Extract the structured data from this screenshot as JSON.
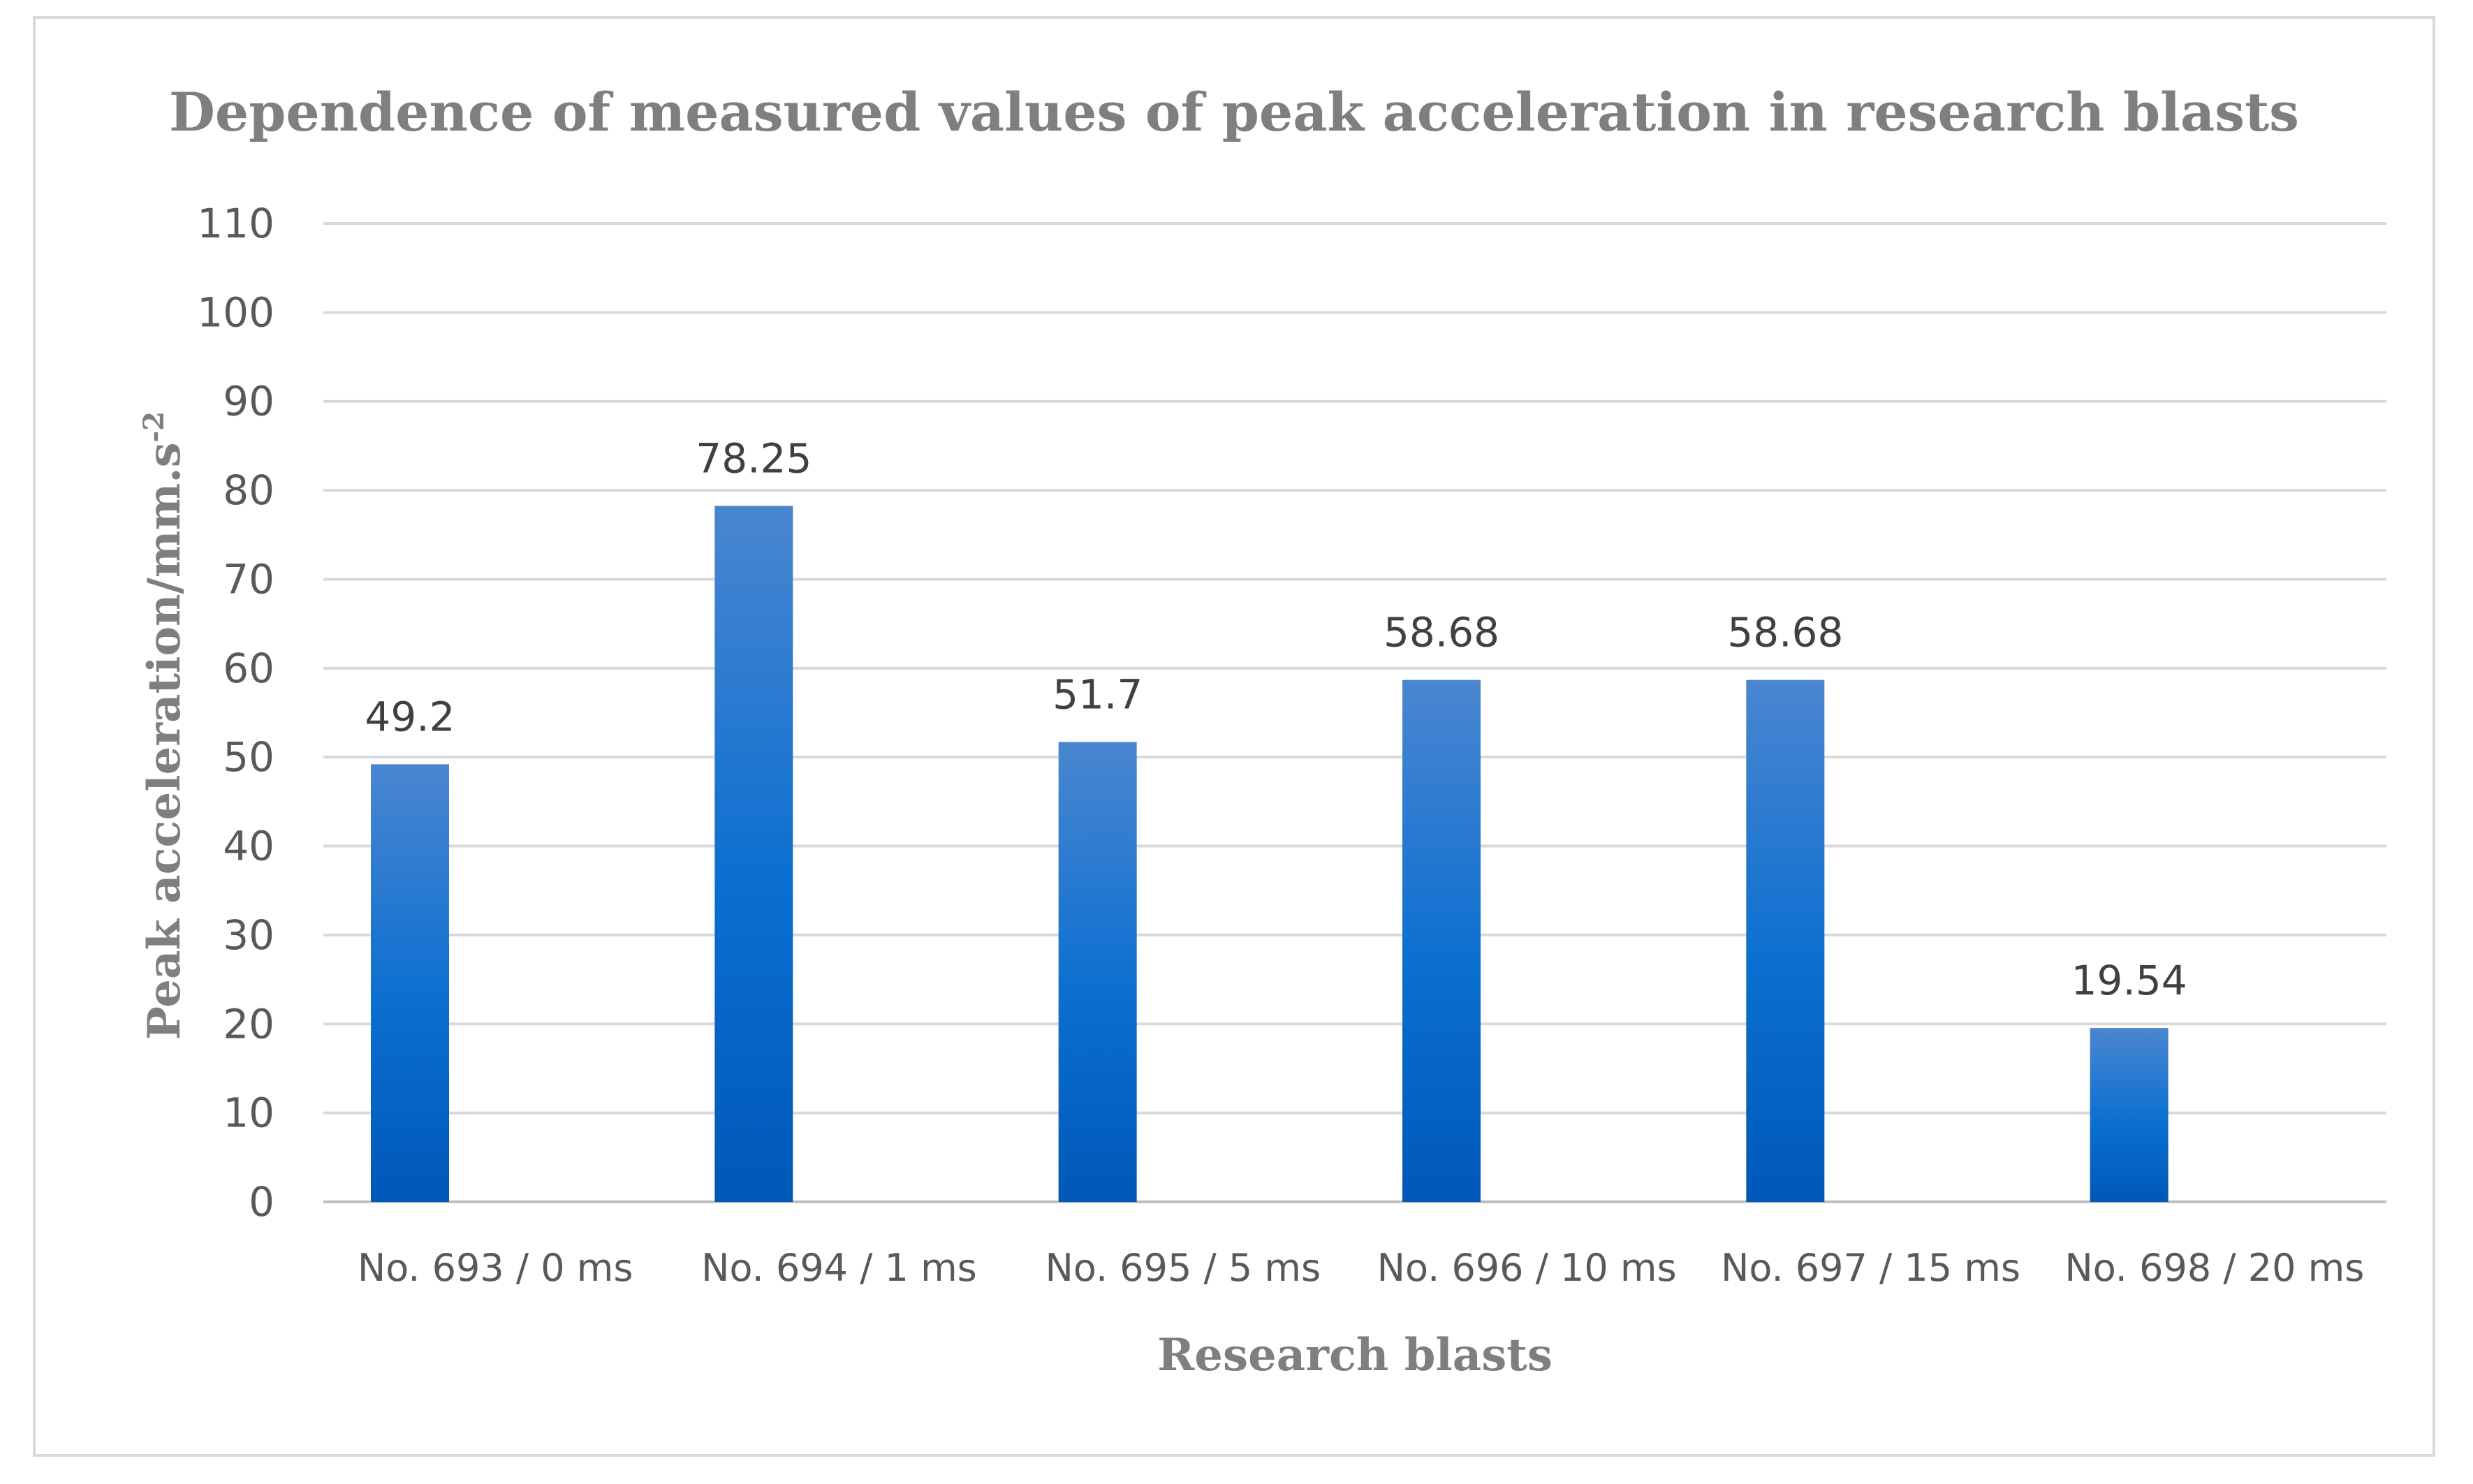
{
  "chart_data": {
    "type": "bar",
    "title": "Dependence of measured values of peak acceleration in research blasts",
    "xlabel": "Research blasts",
    "ylabel_main": "Peak acceleration/mm.s",
    "ylabel_superscript": "-2",
    "categories": [
      "No. 693 / 0 ms",
      "No. 694 / 1 ms",
      "No. 695 / 5 ms",
      "No. 696 / 10 ms",
      "No. 697 / 15 ms",
      "No. 698 / 20 ms"
    ],
    "values": [
      49.2,
      78.25,
      51.7,
      58.68,
      58.68,
      19.54
    ],
    "data_labels": [
      "49.2",
      "78.25",
      "51.7",
      "58.68",
      "58.68",
      "19.54"
    ],
    "ylim": [
      0,
      110
    ],
    "yticks": [
      0,
      10,
      20,
      30,
      40,
      50,
      60,
      70,
      80,
      90,
      100,
      110
    ],
    "grid": true,
    "legend": "none",
    "colors": {
      "bar_top": "#4a86d0",
      "bar_mid": "#0a6fd0",
      "bar_bottom": "#0058b8",
      "grid": "#d9d9d9",
      "text": "#595959",
      "title": "#7f7f7f"
    }
  }
}
